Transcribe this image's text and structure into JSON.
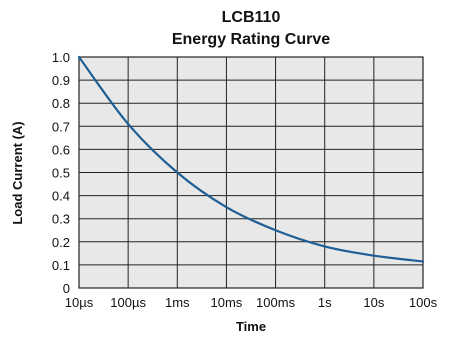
{
  "chart_data": {
    "type": "line",
    "title": "LCB110",
    "subtitle": "Energy Rating Curve",
    "xlabel": "Time",
    "ylabel": "Load Current (A)",
    "x_scale": "log",
    "x_ticks": [
      "10µs",
      "100µs",
      "1ms",
      "10ms",
      "100ms",
      "1s",
      "10s",
      "100s"
    ],
    "y_ticks": [
      "0",
      "0.1",
      "0.2",
      "0.3",
      "0.4",
      "0.5",
      "0.6",
      "0.7",
      "0.8",
      "0.9",
      "1.0"
    ],
    "ylim": [
      0,
      1.0
    ],
    "grid": true,
    "series": [
      {
        "x": [
          "10µs",
          "100µs",
          "1ms",
          "10ms",
          "100ms",
          "1s",
          "10s",
          "100s"
        ],
        "y": [
          1.0,
          0.71,
          0.5,
          0.35,
          0.25,
          0.18,
          0.14,
          0.115
        ]
      }
    ]
  },
  "style": {
    "plot_background": "#e8e8e8",
    "grid_color": "#222222",
    "curve_color": "#1f5f94",
    "text_color": "#111111"
  }
}
